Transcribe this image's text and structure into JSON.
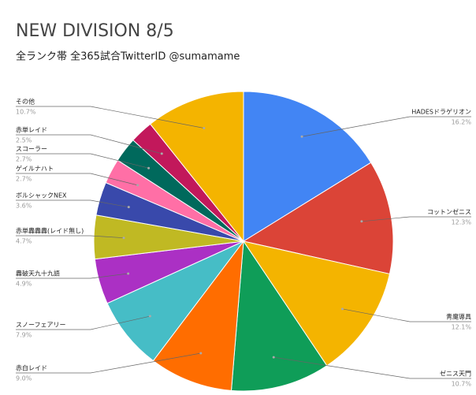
{
  "chart_data": {
    "type": "pie",
    "title": "NEW DIVISION 8/5",
    "subtitle": "全ランク帯 全365試合TwitterID @sumamame",
    "categories": [
      "HADESドラゲリオン",
      "コットンゼニス",
      "青魔導具",
      "ゼニス天門",
      "赤白レイド",
      "スノーフェアリー",
      "轟破天九十九語",
      "赤単轟轟轟(レイド無し)",
      "ボルシャックNEX",
      "ゲイルナハト",
      "スコーラー",
      "赤単レイド",
      "その他"
    ],
    "values": [
      16.2,
      12.3,
      12.1,
      10.7,
      9.0,
      7.9,
      4.9,
      4.7,
      3.6,
      2.7,
      2.7,
      2.5,
      10.7
    ],
    "value_labels": [
      "16.2%",
      "12.3%",
      "12.1%",
      "10.7%",
      "9.0%",
      "7.9%",
      "4.9%",
      "4.7%",
      "3.6%",
      "2.7%",
      "2.7%",
      "2.5%",
      "10.7%"
    ],
    "colors": [
      "#4285f4",
      "#db4437",
      "#f4b400",
      "#0f9d58",
      "#ff6d00",
      "#46bdc6",
      "#ab30c4",
      "#c0b923",
      "#3949ab",
      "#ff6fa6",
      "#00695c",
      "#c2185b",
      "#f4b400"
    ]
  }
}
